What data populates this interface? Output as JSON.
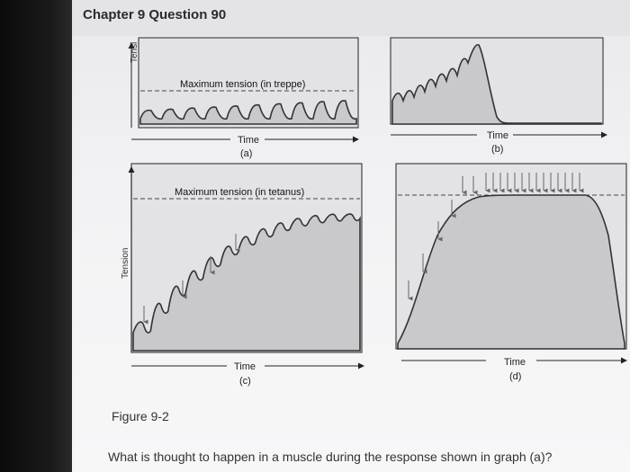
{
  "header": {
    "title": "Chapter 9 Question 90"
  },
  "graphs": {
    "a": {
      "ylabel": "Tensi",
      "max_label": "Maximum tension (in treppe)",
      "xlabel": "Time",
      "letter": "(a)"
    },
    "b": {
      "xlabel": "Time",
      "letter": "(b)"
    },
    "c": {
      "ylabel": "Tension",
      "max_label": "Maximum tension (in tetanus)",
      "xlabel": "Time",
      "letter": "(c)"
    },
    "d": {
      "xlabel": "Time",
      "letter": "(d)"
    }
  },
  "figure": {
    "caption": "Figure 9-2"
  },
  "question": {
    "text": "What is thought to happen in a muscle during the response shown in graph (a)?"
  },
  "colors": {
    "panel_fill": "#c9c9cc",
    "panel_bg": "#e6e6e9",
    "curve": "#333333",
    "stimulus_arrow": "#666666"
  }
}
